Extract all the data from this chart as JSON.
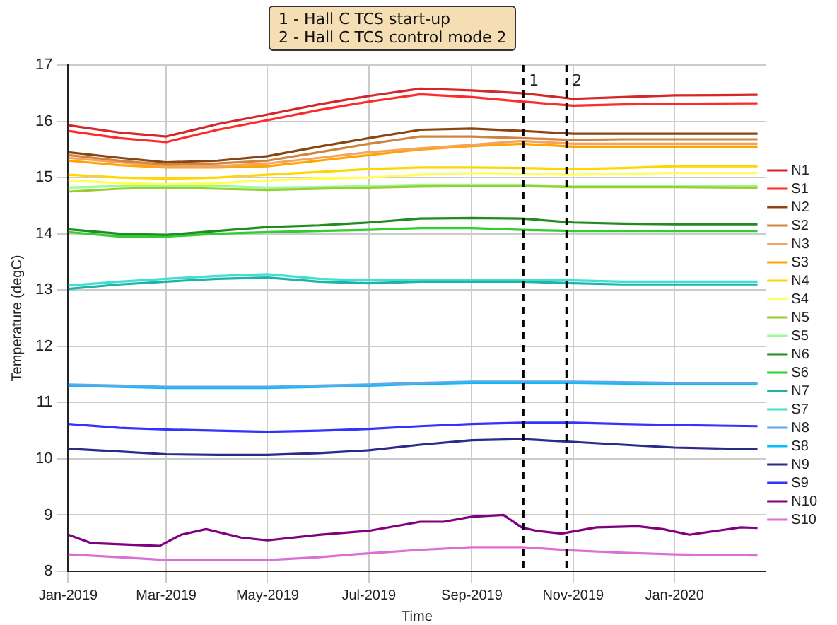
{
  "chart_data": {
    "type": "line",
    "xlabel": "Time",
    "ylabel": "Temperature (degC)",
    "annotations": [
      "1 - Hall C TCS start-up",
      "2 - Hall C TCS control mode 2"
    ],
    "x": [
      "2019-01-01",
      "2019-02-01",
      "2019-03-01",
      "2019-04-01",
      "2019-05-01",
      "2019-06-01",
      "2019-07-01",
      "2019-08-01",
      "2019-09-01",
      "2019-10-01",
      "2019-11-01",
      "2019-12-01",
      "2020-01-01",
      "2020-02-20"
    ],
    "xlim": [
      "2019-01-01",
      "2020-02-25"
    ],
    "xticks": [
      {
        "value": "2019-01-01",
        "label": "Jan-2019"
      },
      {
        "value": "2019-03-01",
        "label": "Mar-2019"
      },
      {
        "value": "2019-05-01",
        "label": "May-2019"
      },
      {
        "value": "2019-07-01",
        "label": "Jul-2019"
      },
      {
        "value": "2019-09-01",
        "label": "Sep-2019"
      },
      {
        "value": "2019-11-01",
        "label": "Nov-2019"
      },
      {
        "value": "2020-01-01",
        "label": "Jan-2020"
      }
    ],
    "ylim": [
      8,
      17
    ],
    "yticks": [
      8,
      9,
      10,
      11,
      12,
      13,
      14,
      15,
      16,
      17
    ],
    "grid": true,
    "legend": "right",
    "marker": "none",
    "line_style": "solid",
    "ref_lines": [
      {
        "axis": "x",
        "value": "2019-10-02",
        "label": "1",
        "color": "#000000",
        "line_style": "dashed"
      },
      {
        "axis": "x",
        "value": "2019-10-28",
        "label": "2",
        "color": "#000000",
        "line_style": "dashed"
      }
    ],
    "series": [
      {
        "name": "N1",
        "color": "#d62728",
        "values": [
          15.93,
          15.8,
          15.73,
          15.95,
          16.12,
          16.3,
          16.45,
          16.58,
          16.55,
          16.5,
          16.4,
          16.43,
          16.46,
          16.47
        ]
      },
      {
        "name": "S1",
        "color": "#ff2a2a",
        "values": [
          15.83,
          15.7,
          15.63,
          15.85,
          16.02,
          16.2,
          16.35,
          16.48,
          16.43,
          16.35,
          16.28,
          16.3,
          16.31,
          16.32
        ]
      },
      {
        "name": "N2",
        "color": "#8b4513",
        "values": [
          15.45,
          15.35,
          15.27,
          15.3,
          15.38,
          15.55,
          15.7,
          15.85,
          15.87,
          15.83,
          15.78,
          15.78,
          15.78,
          15.78
        ]
      },
      {
        "name": "S2",
        "color": "#cd853f",
        "values": [
          15.4,
          15.3,
          15.23,
          15.25,
          15.3,
          15.45,
          15.6,
          15.73,
          15.73,
          15.7,
          15.67,
          15.68,
          15.68,
          15.68
        ]
      },
      {
        "name": "N3",
        "color": "#f4a460",
        "values": [
          15.35,
          15.27,
          15.2,
          15.2,
          15.25,
          15.35,
          15.45,
          15.52,
          15.58,
          15.65,
          15.6,
          15.6,
          15.6,
          15.6
        ]
      },
      {
        "name": "S3",
        "color": "#ffa500",
        "values": [
          15.3,
          15.22,
          15.18,
          15.18,
          15.2,
          15.3,
          15.4,
          15.5,
          15.56,
          15.6,
          15.55,
          15.55,
          15.55,
          15.55
        ]
      },
      {
        "name": "N4",
        "color": "#ffd700",
        "values": [
          15.05,
          15.0,
          14.98,
          15.0,
          15.05,
          15.1,
          15.15,
          15.18,
          15.18,
          15.17,
          15.15,
          15.17,
          15.2,
          15.2
        ]
      },
      {
        "name": "S4",
        "color": "#ffff55",
        "values": [
          14.95,
          14.9,
          14.88,
          14.9,
          14.95,
          14.98,
          15.0,
          15.05,
          15.08,
          15.07,
          15.05,
          15.07,
          15.08,
          15.08
        ]
      },
      {
        "name": "N5",
        "color": "#9acd32",
        "values": [
          14.75,
          14.8,
          14.82,
          14.8,
          14.78,
          14.8,
          14.82,
          14.84,
          14.85,
          14.85,
          14.83,
          14.83,
          14.83,
          14.82
        ]
      },
      {
        "name": "S5",
        "color": "#98fb98",
        "values": [
          14.82,
          14.85,
          14.85,
          14.85,
          14.82,
          14.83,
          14.85,
          14.87,
          14.87,
          14.87,
          14.85,
          14.85,
          14.85,
          14.85
        ]
      },
      {
        "name": "N6",
        "color": "#228b22",
        "values": [
          14.08,
          14.0,
          13.98,
          14.05,
          14.12,
          14.15,
          14.2,
          14.27,
          14.28,
          14.27,
          14.2,
          14.18,
          14.17,
          14.17
        ]
      },
      {
        "name": "S6",
        "color": "#32cd32",
        "values": [
          14.03,
          13.95,
          13.95,
          14.0,
          14.03,
          14.05,
          14.07,
          14.1,
          14.1,
          14.07,
          14.05,
          14.05,
          14.05,
          14.05
        ]
      },
      {
        "name": "N7",
        "color": "#20b2aa",
        "values": [
          13.02,
          13.1,
          13.15,
          13.2,
          13.22,
          13.15,
          13.12,
          13.15,
          13.15,
          13.15,
          13.12,
          13.1,
          13.1,
          13.1
        ]
      },
      {
        "name": "S7",
        "color": "#40e0d0",
        "values": [
          13.08,
          13.15,
          13.2,
          13.25,
          13.28,
          13.2,
          13.17,
          13.18,
          13.18,
          13.18,
          13.17,
          13.15,
          13.15,
          13.15
        ]
      },
      {
        "name": "N8",
        "color": "#5fa8e8",
        "values": [
          11.32,
          11.3,
          11.28,
          11.28,
          11.28,
          11.3,
          11.32,
          11.35,
          11.37,
          11.37,
          11.37,
          11.36,
          11.35,
          11.35
        ]
      },
      {
        "name": "S8",
        "color": "#00bfff",
        "values": [
          11.3,
          11.28,
          11.26,
          11.26,
          11.26,
          11.28,
          11.3,
          11.33,
          11.35,
          11.35,
          11.35,
          11.34,
          11.33,
          11.33
        ]
      },
      {
        "name": "N9",
        "color": "#2b2b8c",
        "values": [
          10.18,
          10.13,
          10.08,
          10.07,
          10.07,
          10.1,
          10.15,
          10.25,
          10.33,
          10.35,
          10.3,
          10.25,
          10.2,
          10.17
        ]
      },
      {
        "name": "S9",
        "color": "#3333ff",
        "values": [
          10.62,
          10.55,
          10.52,
          10.5,
          10.48,
          10.5,
          10.53,
          10.58,
          10.62,
          10.64,
          10.64,
          10.62,
          10.6,
          10.58
        ]
      },
      {
        "name": "N10",
        "color": "#800080",
        "x": [
          "2019-01-01",
          "2019-01-15",
          "2019-02-25",
          "2019-03-10",
          "2019-03-25",
          "2019-04-15",
          "2019-05-01",
          "2019-06-01",
          "2019-07-01",
          "2019-08-01",
          "2019-08-15",
          "2019-09-01",
          "2019-09-20",
          "2019-10-01",
          "2019-10-10",
          "2019-10-25",
          "2019-11-15",
          "2019-12-10",
          "2019-12-25",
          "2020-01-10",
          "2020-02-10",
          "2020-02-20"
        ],
        "values": [
          8.65,
          8.5,
          8.45,
          8.65,
          8.75,
          8.6,
          8.55,
          8.65,
          8.72,
          8.88,
          8.88,
          8.97,
          9.0,
          8.78,
          8.72,
          8.67,
          8.78,
          8.8,
          8.75,
          8.65,
          8.78,
          8.77
        ]
      },
      {
        "name": "S10",
        "color": "#da70d6",
        "values": [
          8.3,
          8.25,
          8.2,
          8.2,
          8.2,
          8.25,
          8.32,
          8.38,
          8.43,
          8.43,
          8.37,
          8.33,
          8.3,
          8.28
        ]
      }
    ]
  }
}
